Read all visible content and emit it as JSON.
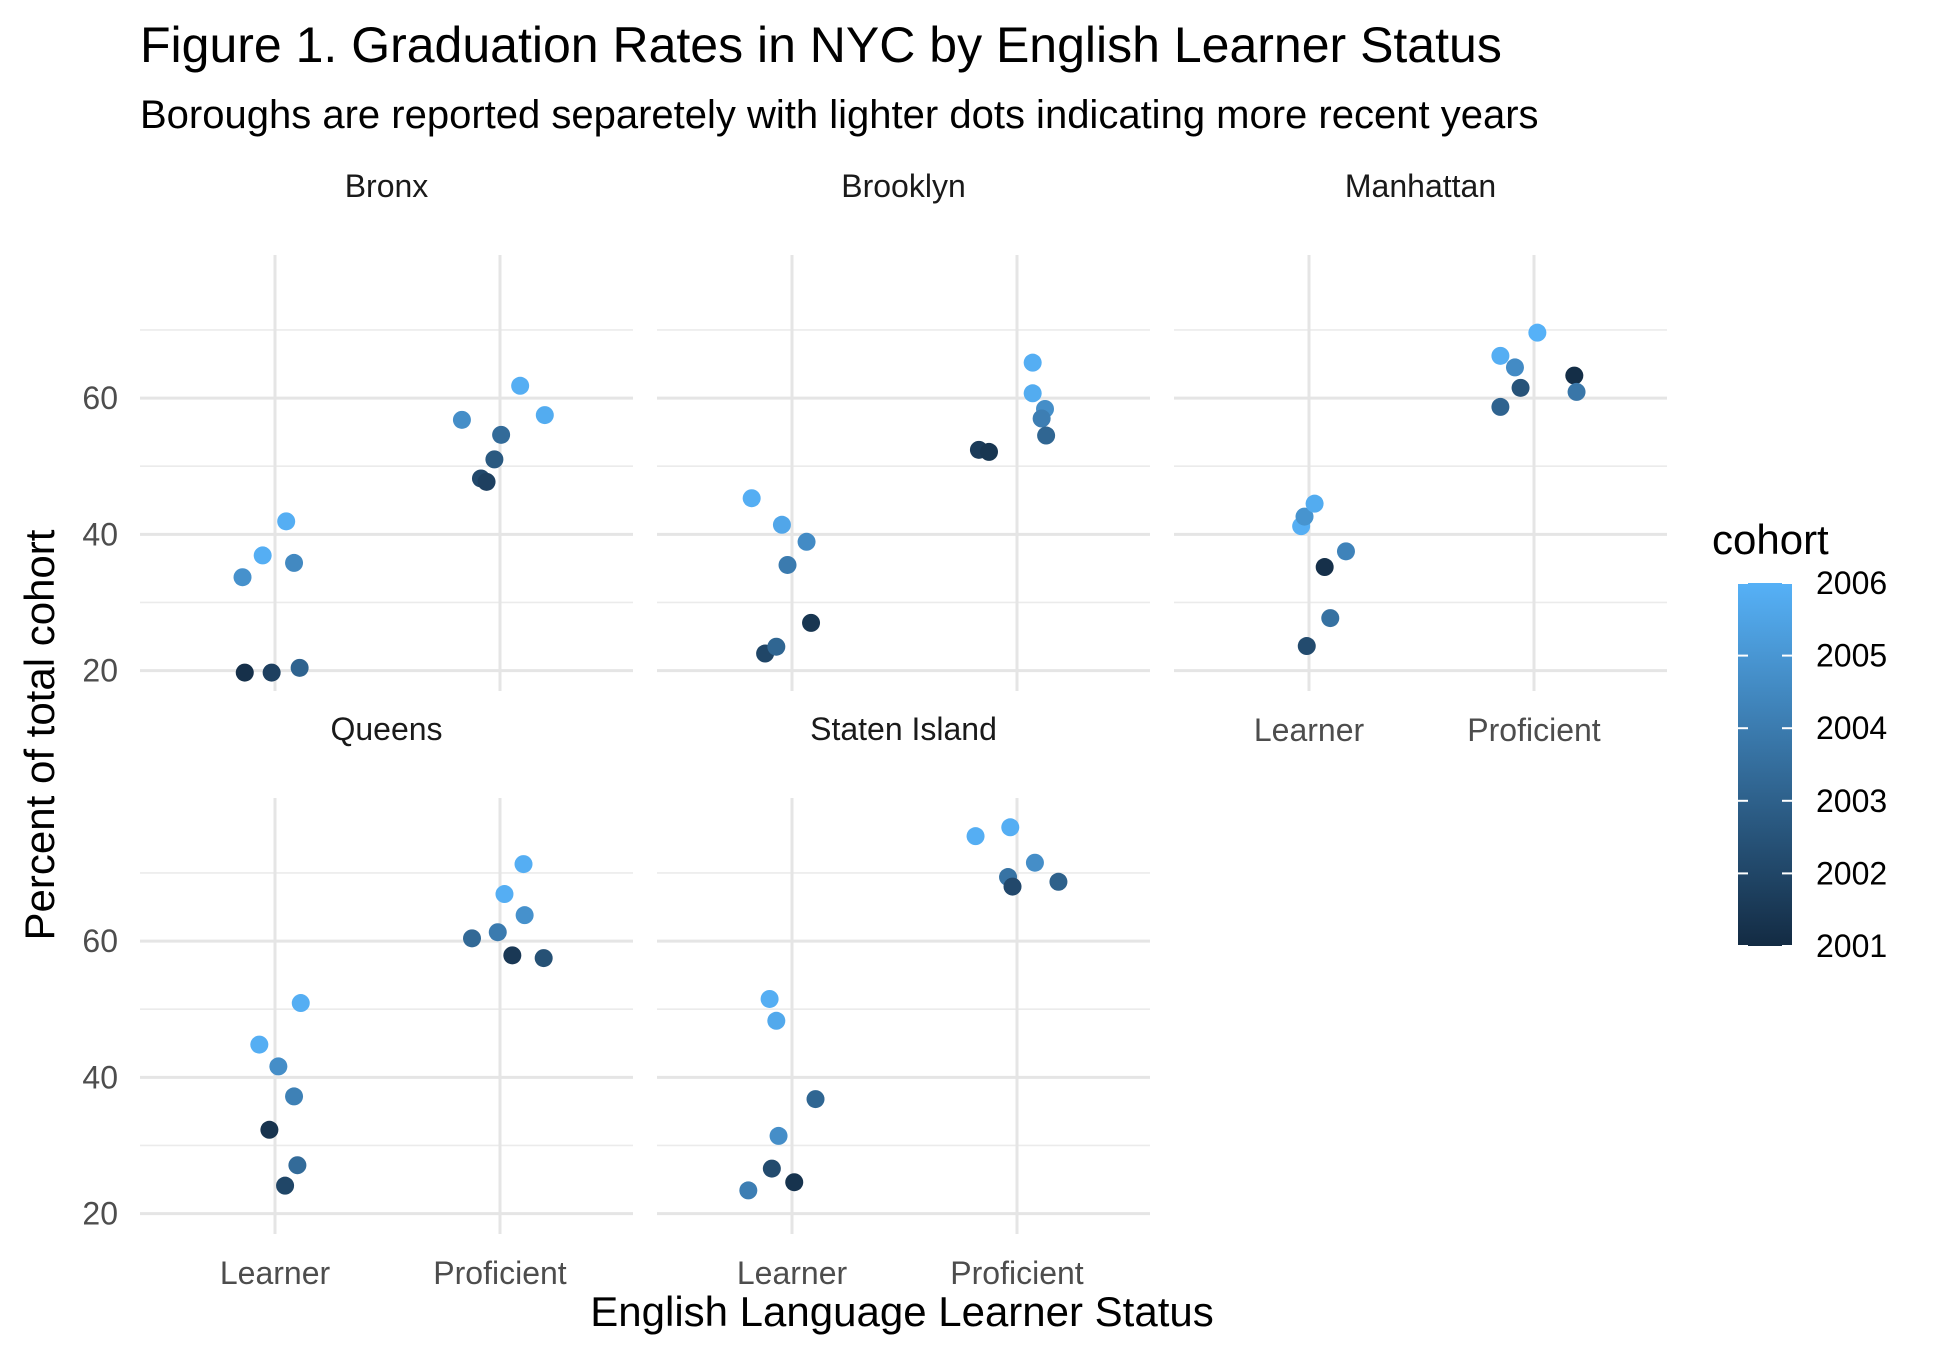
{
  "chart_data": {
    "type": "scatter",
    "title": "Figure 1. Graduation Rates in NYC by English Learner Status",
    "subtitle": "Boroughs are reported separetely with lighter dots indicating more recent years",
    "xlabel": "English Language Learner Status",
    "ylabel": "Percent of total cohort",
    "x_categories": [
      "Learner",
      "Proficient"
    ],
    "y_ticks": [
      20,
      40,
      60
    ],
    "ylim": [
      17,
      81
    ],
    "grid": true,
    "legend": {
      "title": "cohort",
      "placement": "right",
      "range": [
        2001,
        2006
      ],
      "ticks": [
        2001,
        2002,
        2003,
        2004,
        2005,
        2006
      ],
      "color_low": "#132b43",
      "color_high": "#56b1f7"
    },
    "panels": [
      {
        "name": "Bronx",
        "points": [
          {
            "status": "Learner",
            "jitter": -0.29,
            "y": 33.7,
            "cohort": 2004.8
          },
          {
            "status": "Learner",
            "jitter": -0.11,
            "y": 36.9,
            "cohort": 2005.9
          },
          {
            "status": "Learner",
            "jitter": 0.1,
            "y": 41.9,
            "cohort": 2005.9
          },
          {
            "status": "Learner",
            "jitter": 0.17,
            "y": 35.8,
            "cohort": 2004.5
          },
          {
            "status": "Learner",
            "jitter": -0.27,
            "y": 19.7,
            "cohort": 2001.2
          },
          {
            "status": "Learner",
            "jitter": -0.03,
            "y": 19.7,
            "cohort": 2001.8
          },
          {
            "status": "Learner",
            "jitter": 0.22,
            "y": 20.4,
            "cohort": 2003.1
          },
          {
            "status": "Proficient",
            "jitter": -0.34,
            "y": 56.8,
            "cohort": 2004.7
          },
          {
            "status": "Proficient",
            "jitter": 0.01,
            "y": 54.6,
            "cohort": 2003.4
          },
          {
            "status": "Proficient",
            "jitter": -0.05,
            "y": 51.0,
            "cohort": 2002.7
          },
          {
            "status": "Proficient",
            "jitter": -0.17,
            "y": 48.2,
            "cohort": 2002.1
          },
          {
            "status": "Proficient",
            "jitter": -0.12,
            "y": 47.7,
            "cohort": 2001.8
          },
          {
            "status": "Proficient",
            "jitter": 0.18,
            "y": 61.8,
            "cohort": 2005.9
          },
          {
            "status": "Proficient",
            "jitter": 0.4,
            "y": 57.5,
            "cohort": 2005.8
          }
        ]
      },
      {
        "name": "Brooklyn",
        "points": [
          {
            "status": "Learner",
            "jitter": -0.36,
            "y": 45.3,
            "cohort": 2005.9
          },
          {
            "status": "Learner",
            "jitter": -0.09,
            "y": 41.4,
            "cohort": 2005.6
          },
          {
            "status": "Learner",
            "jitter": -0.04,
            "y": 35.5,
            "cohort": 2004.0
          },
          {
            "status": "Learner",
            "jitter": 0.13,
            "y": 38.9,
            "cohort": 2004.6
          },
          {
            "status": "Learner",
            "jitter": -0.24,
            "y": 22.5,
            "cohort": 2002.0
          },
          {
            "status": "Learner",
            "jitter": -0.14,
            "y": 23.5,
            "cohort": 2003.2
          },
          {
            "status": "Learner",
            "jitter": 0.17,
            "y": 27.0,
            "cohort": 2001.4
          },
          {
            "status": "Proficient",
            "jitter": -0.34,
            "y": 52.4,
            "cohort": 2001.6
          },
          {
            "status": "Proficient",
            "jitter": -0.25,
            "y": 52.1,
            "cohort": 2001.4
          },
          {
            "status": "Proficient",
            "jitter": 0.14,
            "y": 65.2,
            "cohort": 2005.9
          },
          {
            "status": "Proficient",
            "jitter": 0.14,
            "y": 60.7,
            "cohort": 2005.8
          },
          {
            "status": "Proficient",
            "jitter": 0.25,
            "y": 58.4,
            "cohort": 2004.7
          },
          {
            "status": "Proficient",
            "jitter": 0.22,
            "y": 57.0,
            "cohort": 2004.1
          },
          {
            "status": "Proficient",
            "jitter": 0.26,
            "y": 54.5,
            "cohort": 2003.2
          }
        ]
      },
      {
        "name": "Manhattan",
        "points": [
          {
            "status": "Learner",
            "jitter": -0.07,
            "y": 41.2,
            "cohort": 2005.9
          },
          {
            "status": "Learner",
            "jitter": -0.04,
            "y": 42.6,
            "cohort": 2004.9
          },
          {
            "status": "Learner",
            "jitter": 0.05,
            "y": 44.5,
            "cohort": 2005.8
          },
          {
            "status": "Learner",
            "jitter": 0.14,
            "y": 35.2,
            "cohort": 2001.2
          },
          {
            "status": "Learner",
            "jitter": 0.33,
            "y": 37.5,
            "cohort": 2004.3
          },
          {
            "status": "Learner",
            "jitter": -0.02,
            "y": 23.6,
            "cohort": 2002.2
          },
          {
            "status": "Learner",
            "jitter": 0.19,
            "y": 27.7,
            "cohort": 2003.6
          },
          {
            "status": "Proficient",
            "jitter": -0.3,
            "y": 66.2,
            "cohort": 2005.9
          },
          {
            "status": "Proficient",
            "jitter": -0.17,
            "y": 64.5,
            "cohort": 2004.6
          },
          {
            "status": "Proficient",
            "jitter": -0.12,
            "y": 61.5,
            "cohort": 2002.5
          },
          {
            "status": "Proficient",
            "jitter": -0.3,
            "y": 58.7,
            "cohort": 2003.1
          },
          {
            "status": "Proficient",
            "jitter": 0.03,
            "y": 69.6,
            "cohort": 2006.0
          },
          {
            "status": "Proficient",
            "jitter": 0.36,
            "y": 63.3,
            "cohort": 2001.1
          },
          {
            "status": "Proficient",
            "jitter": 0.38,
            "y": 60.9,
            "cohort": 2003.8
          }
        ]
      },
      {
        "name": "Queens",
        "points": [
          {
            "status": "Learner",
            "jitter": -0.14,
            "y": 44.8,
            "cohort": 2005.9
          },
          {
            "status": "Learner",
            "jitter": 0.03,
            "y": 41.6,
            "cohort": 2004.7
          },
          {
            "status": "Learner",
            "jitter": 0.23,
            "y": 50.9,
            "cohort": 2005.9
          },
          {
            "status": "Learner",
            "jitter": 0.17,
            "y": 37.2,
            "cohort": 2004.2
          },
          {
            "status": "Learner",
            "jitter": -0.05,
            "y": 32.3,
            "cohort": 2001.3
          },
          {
            "status": "Learner",
            "jitter": 0.2,
            "y": 27.1,
            "cohort": 2003.4
          },
          {
            "status": "Learner",
            "jitter": 0.09,
            "y": 24.1,
            "cohort": 2002.0
          },
          {
            "status": "Proficient",
            "jitter": -0.25,
            "y": 60.4,
            "cohort": 2003.3
          },
          {
            "status": "Proficient",
            "jitter": -0.02,
            "y": 61.3,
            "cohort": 2004.0
          },
          {
            "status": "Proficient",
            "jitter": 0.11,
            "y": 57.9,
            "cohort": 2001.5
          },
          {
            "status": "Proficient",
            "jitter": 0.39,
            "y": 57.5,
            "cohort": 2002.4
          },
          {
            "status": "Proficient",
            "jitter": 0.04,
            "y": 66.9,
            "cohort": 2005.9
          },
          {
            "status": "Proficient",
            "jitter": 0.21,
            "y": 71.3,
            "cohort": 2005.9
          },
          {
            "status": "Proficient",
            "jitter": 0.22,
            "y": 63.8,
            "cohort": 2004.8
          }
        ]
      },
      {
        "name": "Staten Island",
        "points": [
          {
            "status": "Learner",
            "jitter": -0.2,
            "y": 51.5,
            "cohort": 2005.9
          },
          {
            "status": "Learner",
            "jitter": -0.14,
            "y": 48.3,
            "cohort": 2005.7
          },
          {
            "status": "Learner",
            "jitter": 0.21,
            "y": 36.8,
            "cohort": 2003.2
          },
          {
            "status": "Learner",
            "jitter": -0.12,
            "y": 31.4,
            "cohort": 2004.7
          },
          {
            "status": "Learner",
            "jitter": -0.18,
            "y": 26.6,
            "cohort": 2002.2
          },
          {
            "status": "Learner",
            "jitter": 0.02,
            "y": 24.6,
            "cohort": 2001.3
          },
          {
            "status": "Learner",
            "jitter": -0.39,
            "y": 23.4,
            "cohort": 2004.1
          },
          {
            "status": "Proficient",
            "jitter": -0.37,
            "y": 75.4,
            "cohort": 2005.9
          },
          {
            "status": "Proficient",
            "jitter": -0.06,
            "y": 76.7,
            "cohort": 2005.9
          },
          {
            "status": "Proficient",
            "jitter": 0.16,
            "y": 71.5,
            "cohort": 2004.7
          },
          {
            "status": "Proficient",
            "jitter": -0.08,
            "y": 69.4,
            "cohort": 2003.7
          },
          {
            "status": "Proficient",
            "jitter": -0.04,
            "y": 68.0,
            "cohort": 2002.1
          },
          {
            "status": "Proficient",
            "jitter": 0.37,
            "y": 68.7,
            "cohort": 2003.0
          }
        ]
      }
    ]
  }
}
